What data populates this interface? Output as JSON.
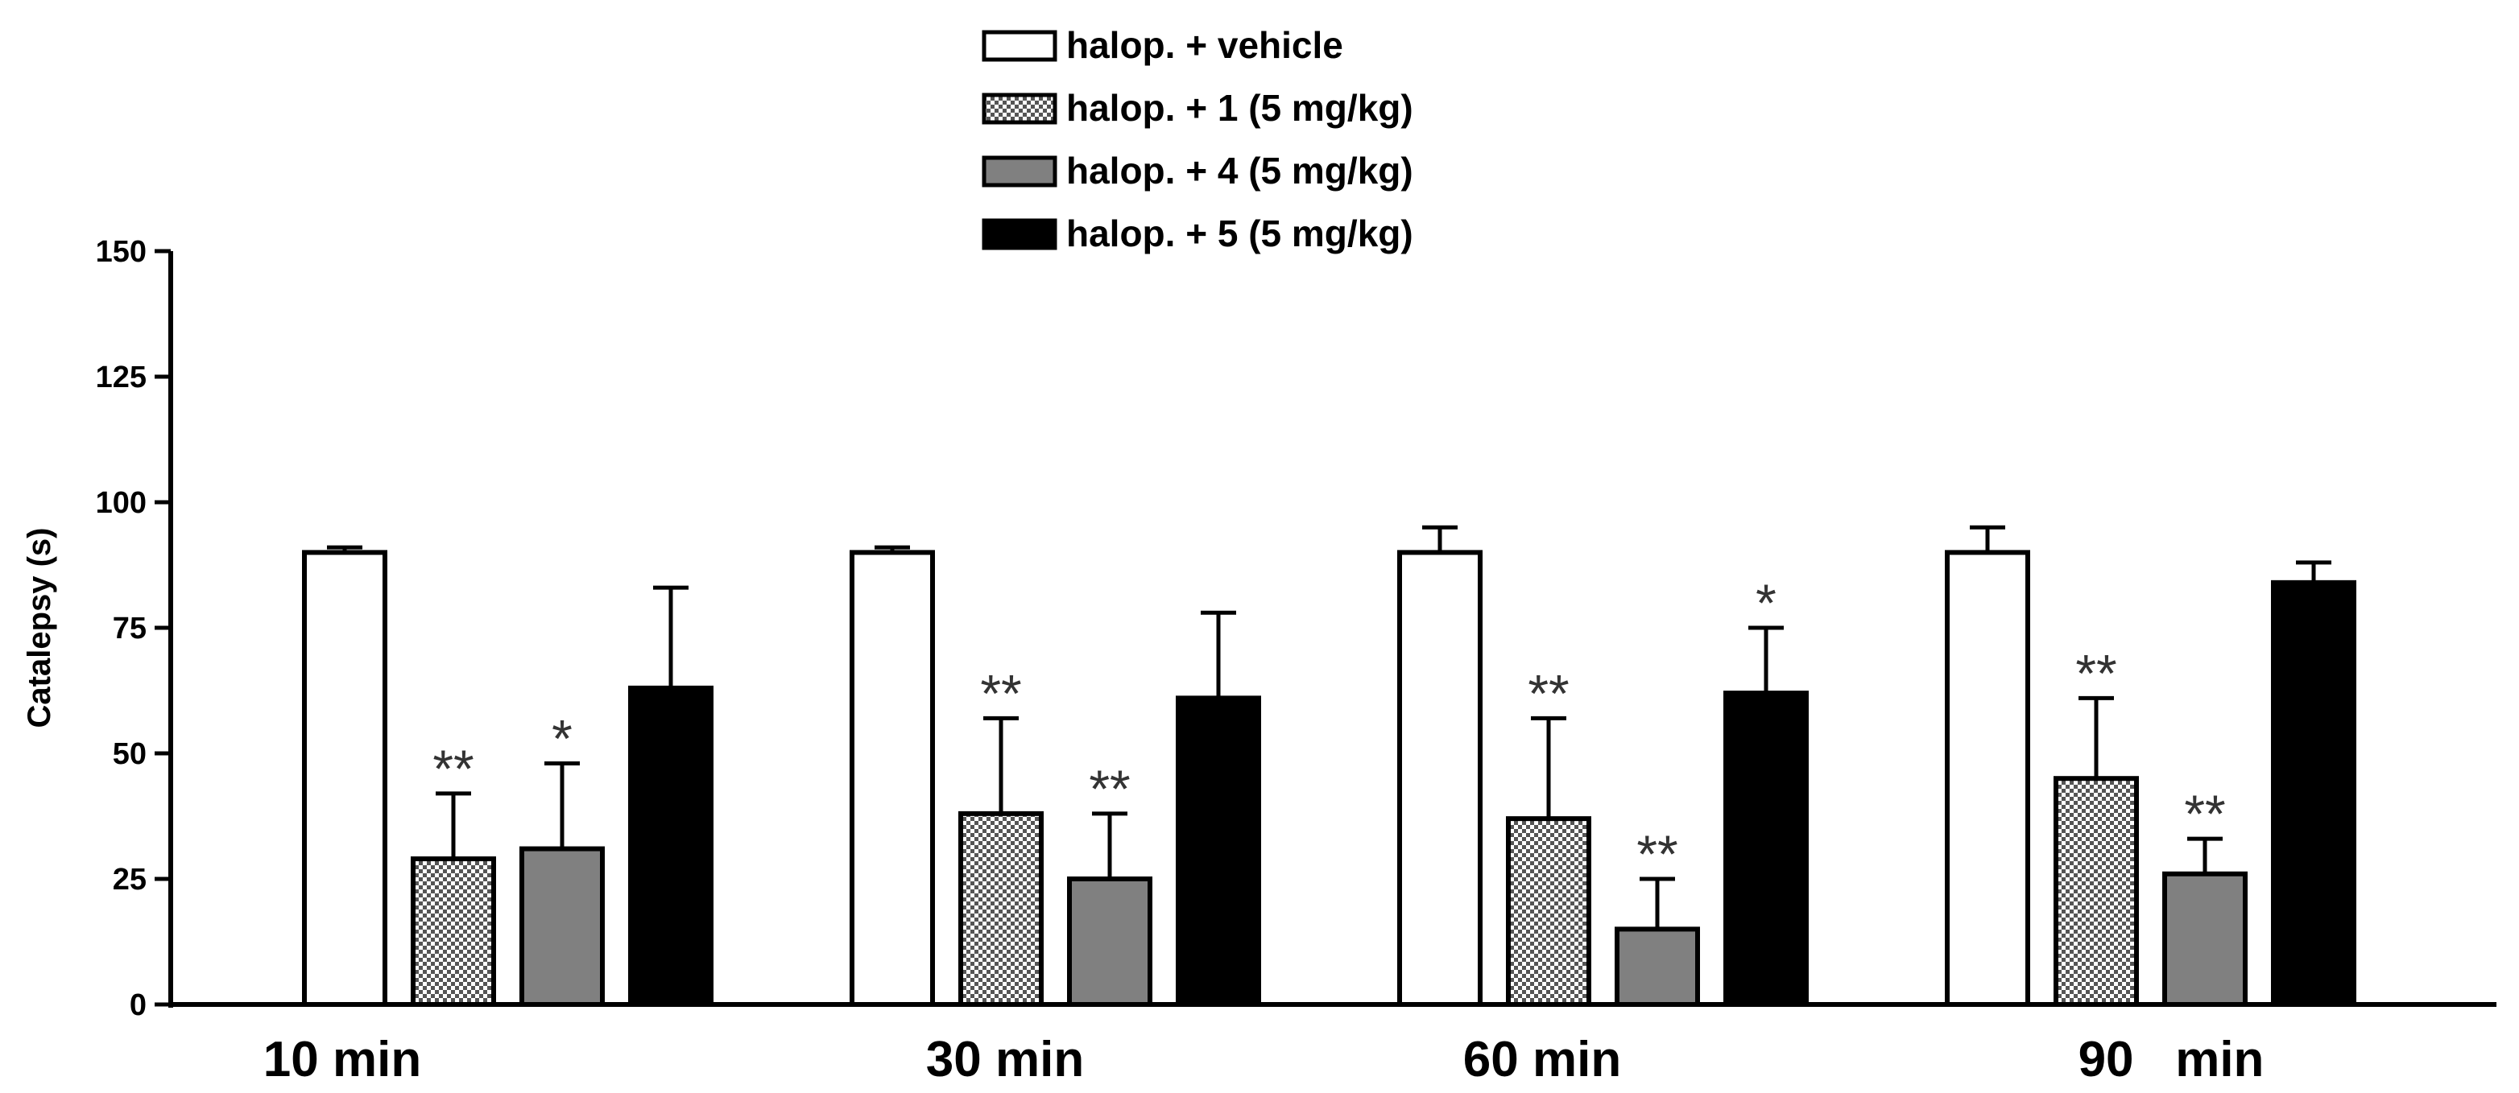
{
  "chart_data": {
    "type": "bar",
    "categories": [
      "10 min",
      "30 min",
      "60 min",
      "90   min"
    ],
    "ylabel": "Catalepsy (s)",
    "ylim": [
      0,
      150
    ],
    "yticks": [
      0,
      25,
      50,
      75,
      100,
      125,
      150
    ],
    "grid": false,
    "legend_position": "top-center",
    "series": [
      {
        "name": "halop. + vehicle",
        "fill": "white",
        "values": [
          90,
          90,
          90,
          90
        ],
        "errors": [
          1,
          1,
          5,
          5
        ],
        "significance": [
          "",
          "",
          "",
          ""
        ]
      },
      {
        "name": "halop. + 1 (5 mg/kg)",
        "fill": "checker",
        "values": [
          29,
          38,
          37,
          45
        ],
        "errors": [
          13,
          19,
          20,
          16
        ],
        "significance": [
          "**",
          "**",
          "**",
          "**"
        ]
      },
      {
        "name": "halop. + 4 (5 mg/kg)",
        "fill": "gray",
        "values": [
          31,
          25,
          15,
          26
        ],
        "errors": [
          17,
          13,
          10,
          7
        ],
        "significance": [
          "*",
          "**",
          "**",
          "**"
        ]
      },
      {
        "name": "halop. + 5 (5 mg/kg)",
        "fill": "black",
        "values": [
          63,
          61,
          62,
          84
        ],
        "errors": [
          20,
          17,
          13,
          4
        ],
        "significance": [
          "",
          "",
          "*",
          ""
        ]
      }
    ],
    "colors": {
      "white": "#ffffff",
      "gray": "#808080",
      "black": "#000000",
      "checker_dark": "#555555",
      "checker_light": "#ffffff"
    }
  }
}
